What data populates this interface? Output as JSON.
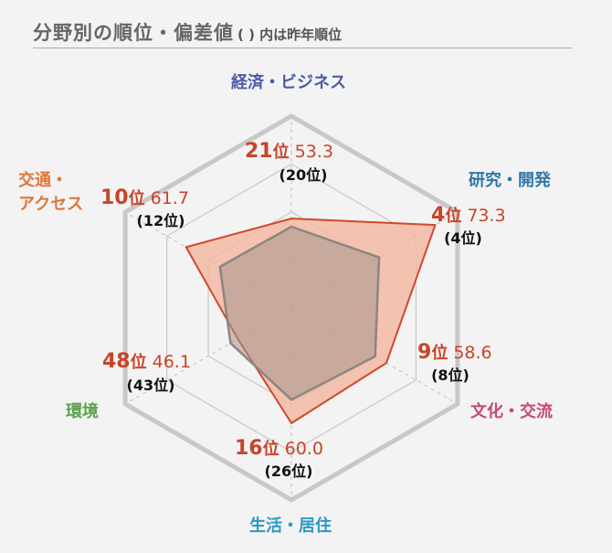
{
  "header": {
    "title": "分野別の順位・偏差値",
    "note": "( ) 内は昨年順位"
  },
  "colors": {
    "current_fill": "#f2b8a4",
    "current_stroke": "#d0482a",
    "previous_fill": "#a3958e",
    "previous_stroke": "#8d8580",
    "grid": "#c8c8c8",
    "rank_text": "#c8442a"
  },
  "chart_data": {
    "type": "radar",
    "scale": [
      30,
      80
    ],
    "rank_unit": "位",
    "axes": [
      {
        "name": "経済・ビジネス",
        "name_lines": [
          "経済・ビジネス"
        ],
        "label_color": "#4f5aa6",
        "rank": 21,
        "score": "53.3",
        "previous_rank_text": "(20位)"
      },
      {
        "name": "研究・開発",
        "name_lines": [
          "研究・開発"
        ],
        "label_color": "#2f77a8",
        "rank": 4,
        "score": "73.3",
        "previous_rank_text": "(4位)"
      },
      {
        "name": "文化・交流",
        "name_lines": [
          "文化・交流"
        ],
        "label_color": "#c64a70",
        "rank": 9,
        "score": "58.6",
        "previous_rank_text": "(8位)"
      },
      {
        "name": "生活・居住",
        "name_lines": [
          "生活・居住"
        ],
        "label_color": "#2b98c5",
        "rank": 16,
        "score": "60.0",
        "previous_rank_text": "(26位)"
      },
      {
        "name": "環境",
        "name_lines": [
          "環境"
        ],
        "label_color": "#58a34a",
        "rank": 48,
        "score": "46.1",
        "previous_rank_text": "(43位)"
      },
      {
        "name": "交通・アクセス",
        "name_lines": [
          "交通・",
          "アクセス"
        ],
        "label_color": "#e0763c",
        "rank": 10,
        "score": "61.7",
        "previous_rank_text": "(12位)"
      }
    ],
    "series": [
      {
        "values": [
          53.3,
          73.3,
          58.6,
          60.0,
          46.1,
          61.7
        ]
      },
      {
        "values": [
          51.2,
          56.4,
          55.2,
          53.9,
          48.3,
          51.5
        ]
      }
    ]
  }
}
